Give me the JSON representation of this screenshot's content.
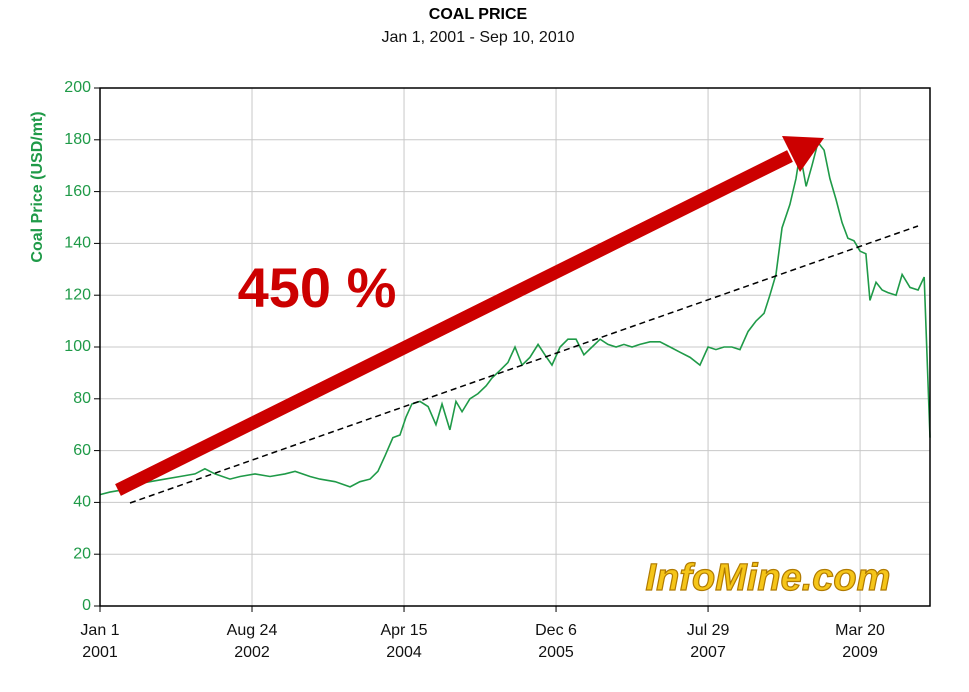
{
  "chart_data": {
    "type": "line",
    "title": "COAL PRICE",
    "subtitle": "Jan 1, 2001 - Sep 10, 2010",
    "y_label": "Coal Price (USD/mt)",
    "annotation": "450 %",
    "watermark": "InfoMine.com",
    "grid": true,
    "xlim": [
      0,
      3276
    ],
    "ylim": [
      0,
      200
    ],
    "yticks": [
      0,
      20,
      40,
      60,
      80,
      100,
      120,
      140,
      160,
      180,
      200
    ],
    "xticks": [
      {
        "value": 0,
        "label": "Jan 1\n2001"
      },
      {
        "value": 600,
        "label": "Aug 24\n2002"
      },
      {
        "value": 1200,
        "label": "Apr 15\n2004"
      },
      {
        "value": 1800,
        "label": "Dec 6\n2005"
      },
      {
        "value": 2400,
        "label": "Jul 29\n2007"
      },
      {
        "value": 3000,
        "label": "Mar 20\n2009"
      }
    ],
    "series": [
      {
        "color": "#1f9a48",
        "x": [
          0,
          39,
          99,
          138,
          197,
          257,
          316,
          375,
          414,
          454,
          513,
          553,
          612,
          671,
          730,
          770,
          829,
          868,
          928,
          987,
          1026,
          1066,
          1097,
          1125,
          1156,
          1184,
          1208,
          1231,
          1263,
          1295,
          1326,
          1350,
          1381,
          1405,
          1429,
          1460,
          1492,
          1524,
          1547,
          1579,
          1610,
          1638,
          1666,
          1697,
          1729,
          1756,
          1784,
          1816,
          1847,
          1879,
          1910,
          1942,
          1974,
          2005,
          2037,
          2068,
          2100,
          2131,
          2171,
          2210,
          2250,
          2289,
          2329,
          2368,
          2400,
          2431,
          2463,
          2494,
          2526,
          2558,
          2589,
          2621,
          2644,
          2668,
          2692,
          2723,
          2747,
          2763,
          2787,
          2810,
          2834,
          2858,
          2881,
          2905,
          2929,
          2952,
          2976,
          3000,
          3023,
          3039,
          3063,
          3087,
          3110,
          3142,
          3166,
          3197,
          3229,
          3253,
          3276
        ],
        "values": [
          43,
          44,
          45,
          47,
          48,
          49,
          50,
          51,
          53,
          51,
          49,
          50,
          51,
          50,
          51,
          52,
          50,
          49,
          48,
          46,
          48,
          49,
          52,
          58,
          65,
          66,
          73,
          78,
          79,
          77,
          70,
          78,
          68,
          79,
          75,
          80,
          82,
          85,
          88,
          91,
          94,
          100,
          93,
          96,
          101,
          97,
          93,
          100,
          103,
          103,
          97,
          100,
          103,
          101,
          100,
          101,
          100,
          101,
          102,
          102,
          100,
          98,
          96,
          93,
          100,
          99,
          100,
          100,
          99,
          106,
          110,
          113,
          120,
          128,
          146,
          155,
          165,
          175,
          162,
          170,
          179,
          176,
          165,
          157,
          148,
          142,
          141,
          137,
          136,
          118,
          125,
          122,
          121,
          120,
          128,
          123,
          122,
          127,
          65
        ]
      }
    ]
  }
}
